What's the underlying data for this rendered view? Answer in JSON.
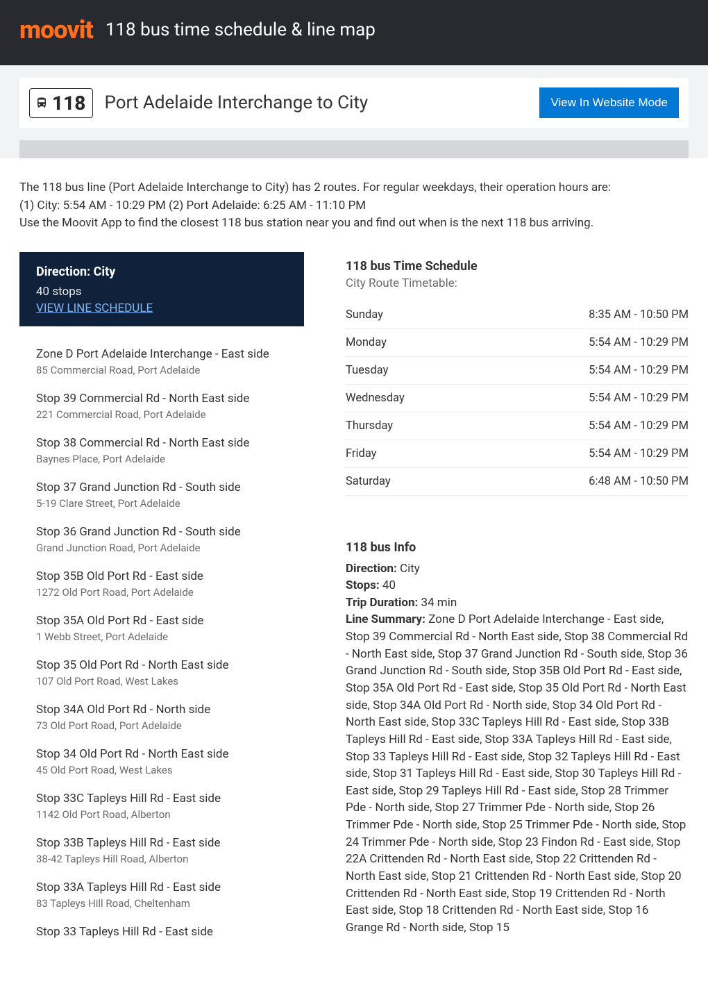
{
  "header": {
    "logo_text": "moovit",
    "title": "118 bus time schedule & line map"
  },
  "subheader": {
    "route_number": "118",
    "destination": "Port Adelaide Interchange to City",
    "website_button": "View In Website Mode"
  },
  "intro": {
    "p1": "The 118 bus line (Port Adelaide Interchange to City) has 2 routes. For regular weekdays, their operation hours are:",
    "p2": "(1) City: 5:54 AM - 10:29 PM (2) Port Adelaide: 6:25 AM - 11:10 PM",
    "p3": "Use the Moovit App to find the closest 118 bus station near you and find out when is the next 118 bus arriving."
  },
  "direction_box": {
    "title": "Direction: City",
    "stops_count": "40 stops",
    "link": "VIEW LINE SCHEDULE"
  },
  "stops": [
    {
      "name": "Zone D Port Adelaide Interchange - East side",
      "addr": "85 Commercial Road, Port Adelaide"
    },
    {
      "name": "Stop 39 Commercial Rd - North East side",
      "addr": "221 Commercial Road, Port Adelaide"
    },
    {
      "name": "Stop 38 Commercial Rd - North East side",
      "addr": "Baynes Place, Port Adelaide"
    },
    {
      "name": "Stop 37 Grand Junction Rd - South side",
      "addr": "5-19 Clare Street, Port Adelaide"
    },
    {
      "name": "Stop 36 Grand Junction Rd - South side",
      "addr": "Grand Junction Road, Port Adelaide"
    },
    {
      "name": "Stop 35B Old Port Rd - East side",
      "addr": "1272 Old Port Road, Port Adelaide"
    },
    {
      "name": "Stop 35A Old Port Rd - East side",
      "addr": "1 Webb Street, Port Adelaide"
    },
    {
      "name": "Stop 35 Old Port Rd - North East side",
      "addr": "107 Old Port Road, West Lakes"
    },
    {
      "name": "Stop 34A Old Port Rd - North side",
      "addr": "73 Old Port Road, Port Adelaide"
    },
    {
      "name": "Stop 34 Old Port Rd - North East side",
      "addr": "45 Old Port Road, West Lakes"
    },
    {
      "name": "Stop 33C Tapleys Hill Rd - East side",
      "addr": "1142 Old Port Road, Alberton"
    },
    {
      "name": "Stop 33B Tapleys Hill Rd - East side",
      "addr": "38-42 Tapleys Hill Road, Alberton"
    },
    {
      "name": "Stop 33A Tapleys Hill Rd - East side",
      "addr": "83 Tapleys Hill Road, Cheltenham"
    },
    {
      "name": "Stop 33 Tapleys Hill Rd - East side",
      "addr": ""
    }
  ],
  "schedule": {
    "title": "118 bus Time Schedule",
    "subtitle": "City Route Timetable:",
    "rows": [
      {
        "day": "Sunday",
        "hours": "8:35 AM - 10:50 PM"
      },
      {
        "day": "Monday",
        "hours": "5:54 AM - 10:29 PM"
      },
      {
        "day": "Tuesday",
        "hours": "5:54 AM - 10:29 PM"
      },
      {
        "day": "Wednesday",
        "hours": "5:54 AM - 10:29 PM"
      },
      {
        "day": "Thursday",
        "hours": "5:54 AM - 10:29 PM"
      },
      {
        "day": "Friday",
        "hours": "5:54 AM - 10:29 PM"
      },
      {
        "day": "Saturday",
        "hours": "6:48 AM - 10:50 PM"
      }
    ]
  },
  "info": {
    "title": "118 bus Info",
    "direction_label": "Direction:",
    "direction_value": " City",
    "stops_label": "Stops:",
    "stops_value": " 40",
    "duration_label": "Trip Duration:",
    "duration_value": " 34 min",
    "summary_label": "Line Summary:",
    "summary_value": " Zone D Port Adelaide Interchange - East side, Stop 39 Commercial Rd - North East side, Stop 38 Commercial Rd - North East side, Stop 37 Grand Junction Rd - South side, Stop 36 Grand Junction Rd - South side, Stop 35B Old Port Rd - East side, Stop 35A Old Port Rd - East side, Stop 35 Old Port Rd - North East side, Stop 34A Old Port Rd - North side, Stop 34 Old Port Rd - North East side, Stop 33C Tapleys Hill Rd - East side, Stop 33B Tapleys Hill Rd - East side, Stop 33A Tapleys Hill Rd - East side, Stop 33 Tapleys Hill Rd - East side, Stop 32 Tapleys Hill Rd - East side, Stop 31 Tapleys Hill Rd - East side, Stop 30 Tapleys Hill Rd - East side, Stop 29 Tapleys Hill Rd - East side, Stop 28 Trimmer Pde - North side, Stop 27 Trimmer Pde - North side, Stop 26 Trimmer Pde - North side, Stop 25 Trimmer Pde - North side, Stop 24 Trimmer Pde - North side, Stop 23 Findon Rd - East side, Stop 22A Crittenden Rd - North East side, Stop 22 Crittenden Rd - North East side, Stop 21 Crittenden Rd - North East side, Stop 20 Crittenden Rd - North East side, Stop 19 Crittenden Rd - North East side, Stop 18 Crittenden Rd - North East side, Stop 16 Grange Rd - North side, Stop 15"
  }
}
